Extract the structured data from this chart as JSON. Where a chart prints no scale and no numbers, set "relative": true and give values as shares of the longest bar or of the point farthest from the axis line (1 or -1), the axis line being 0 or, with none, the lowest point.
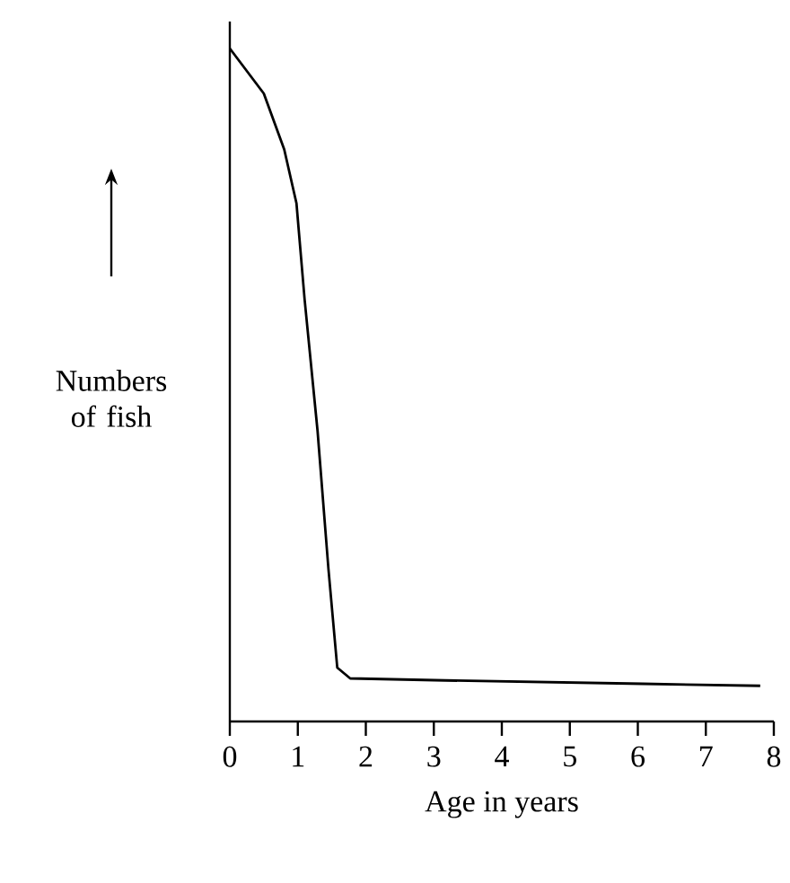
{
  "chart_data": {
    "type": "line",
    "relative": true,
    "xlabel": "Age in years",
    "ylabel": "Numbers of fish",
    "xlim": [
      0,
      8
    ],
    "xticks": [
      0,
      1,
      2,
      3,
      4,
      5,
      6,
      7,
      8
    ],
    "color": "#000000",
    "marker": "none",
    "line_style": "solid",
    "grid": false,
    "x": [
      0,
      0.5,
      0.8,
      0.98,
      1.1,
      1.29,
      1.45,
      1.58,
      1.77,
      3.17,
      6.07,
      7.8
    ],
    "values": [
      1.0,
      0.933,
      0.85,
      0.77,
      0.627,
      0.432,
      0.227,
      0.08,
      0.064,
      0.061,
      0.056,
      0.053
    ]
  }
}
